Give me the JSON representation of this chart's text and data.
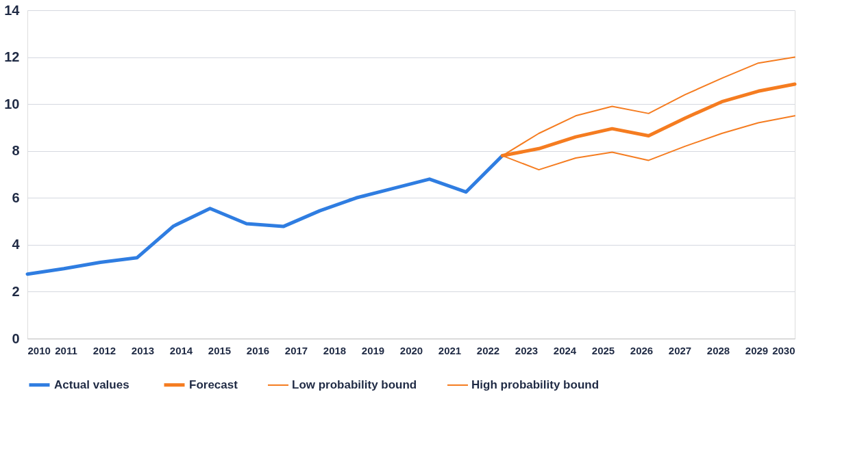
{
  "chart_data": {
    "type": "line",
    "xlim": [
      2010,
      2030
    ],
    "xticks": [
      2010,
      2011,
      2012,
      2013,
      2014,
      2015,
      2016,
      2017,
      2018,
      2019,
      2020,
      2021,
      2022,
      2023,
      2024,
      2025,
      2026,
      2027,
      2028,
      2029,
      2030
    ],
    "ylim": [
      0,
      14
    ],
    "yticks": [
      0,
      2,
      4,
      6,
      8,
      10,
      12,
      14
    ],
    "grid": "y",
    "legend": "bottom",
    "marker": "none",
    "line_style": "solid",
    "series": [
      {
        "name": "Actual values",
        "color": "#2f7de1",
        "x": [
          2010,
          2010.95,
          2011.9,
          2012.86,
          2013.81,
          2014.76,
          2015.71,
          2016.67,
          2017.62,
          2018.57,
          2019.52,
          2020.48,
          2021.43,
          2022.38
        ],
        "values": [
          2.75,
          2.98,
          3.25,
          3.45,
          4.8,
          5.55,
          4.9,
          4.78,
          5.45,
          6.0,
          6.4,
          6.8,
          6.25,
          7.8
        ]
      },
      {
        "name": "Forecast",
        "color": "#f57c20",
        "x": [
          2022.38,
          2023.33,
          2024.29,
          2025.24,
          2026.19,
          2027.14,
          2028.1,
          2029.05,
          2030
        ],
        "values": [
          7.8,
          8.1,
          8.6,
          8.95,
          8.65,
          9.4,
          10.1,
          10.55,
          10.85
        ]
      },
      {
        "name": "Low probability bound",
        "color": "#f57c20",
        "x": [
          2022.38,
          2023.33,
          2024.29,
          2025.24,
          2026.19,
          2027.14,
          2028.1,
          2029.05,
          2030
        ],
        "values": [
          7.8,
          7.2,
          7.7,
          7.95,
          7.6,
          8.2,
          8.75,
          9.2,
          9.5
        ]
      },
      {
        "name": "High probability bound",
        "color": "#f57c20",
        "x": [
          2022.38,
          2023.33,
          2024.29,
          2025.24,
          2026.19,
          2027.14,
          2028.1,
          2029.05,
          2030
        ],
        "values": [
          7.8,
          8.75,
          9.5,
          9.9,
          9.6,
          10.4,
          11.1,
          11.75,
          12.0
        ]
      }
    ]
  }
}
